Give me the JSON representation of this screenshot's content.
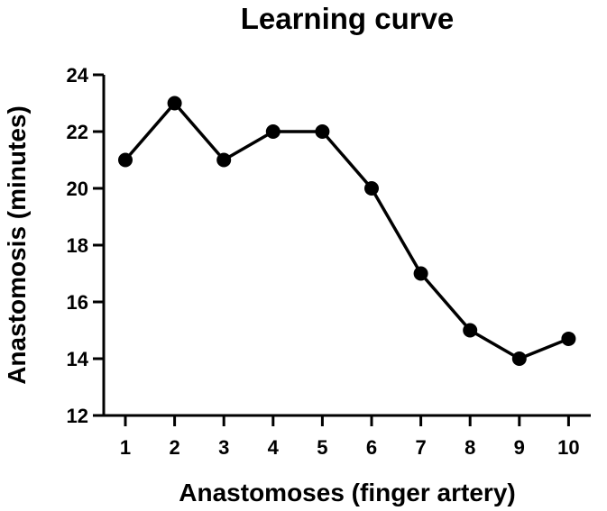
{
  "chart_data": {
    "type": "line",
    "title": "Learning curve",
    "xlabel": "Anastomoses (finger artery)",
    "ylabel": "Anastomosis  (minutes)",
    "x": [
      1,
      2,
      3,
      4,
      5,
      6,
      7,
      8,
      9,
      10
    ],
    "y": [
      21,
      23,
      21,
      22,
      22,
      20,
      17,
      15,
      14,
      14.7
    ],
    "xticks": [
      "1",
      "2",
      "3",
      "4",
      "5",
      "6",
      "7",
      "8",
      "9",
      "10"
    ],
    "yticks": [
      "12",
      "14",
      "16",
      "18",
      "20",
      "22",
      "24"
    ],
    "ylim": [
      12,
      24
    ],
    "grid": false,
    "line_color": "#000000",
    "marker_color": "#000000"
  }
}
